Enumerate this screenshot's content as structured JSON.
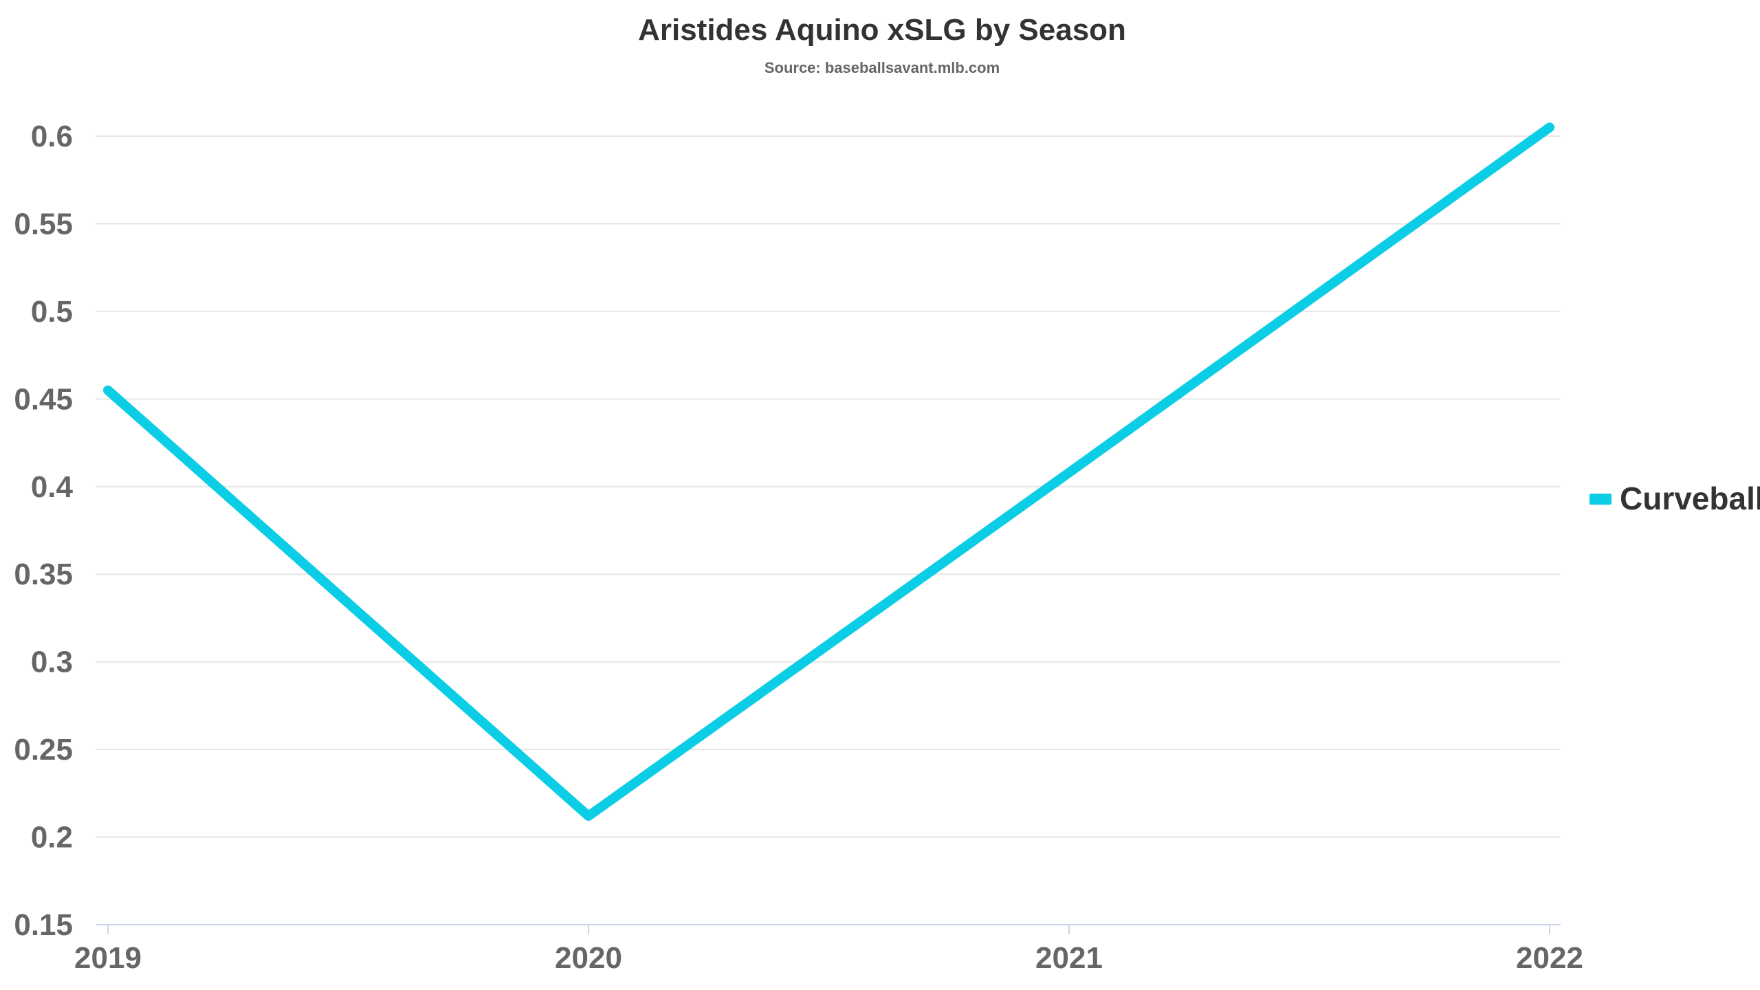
{
  "chart_data": {
    "type": "line",
    "title": "Aristides Aquino xSLG by Season",
    "subtitle": "Source: baseballsavant.mlb.com",
    "xlabel": "",
    "ylabel": "",
    "categories": [
      "2019",
      "2020",
      "2021",
      "2022"
    ],
    "series": [
      {
        "name": "Curveball",
        "color": "#0ccde6",
        "values": [
          0.455,
          0.212,
          0.408,
          0.605
        ]
      }
    ],
    "ylim": [
      0.15,
      0.6
    ],
    "yticks": [
      "0.15",
      "0.2",
      "0.25",
      "0.3",
      "0.35",
      "0.4",
      "0.45",
      "0.5",
      "0.55",
      "0.6"
    ],
    "grid": true,
    "legend_position": "right"
  }
}
